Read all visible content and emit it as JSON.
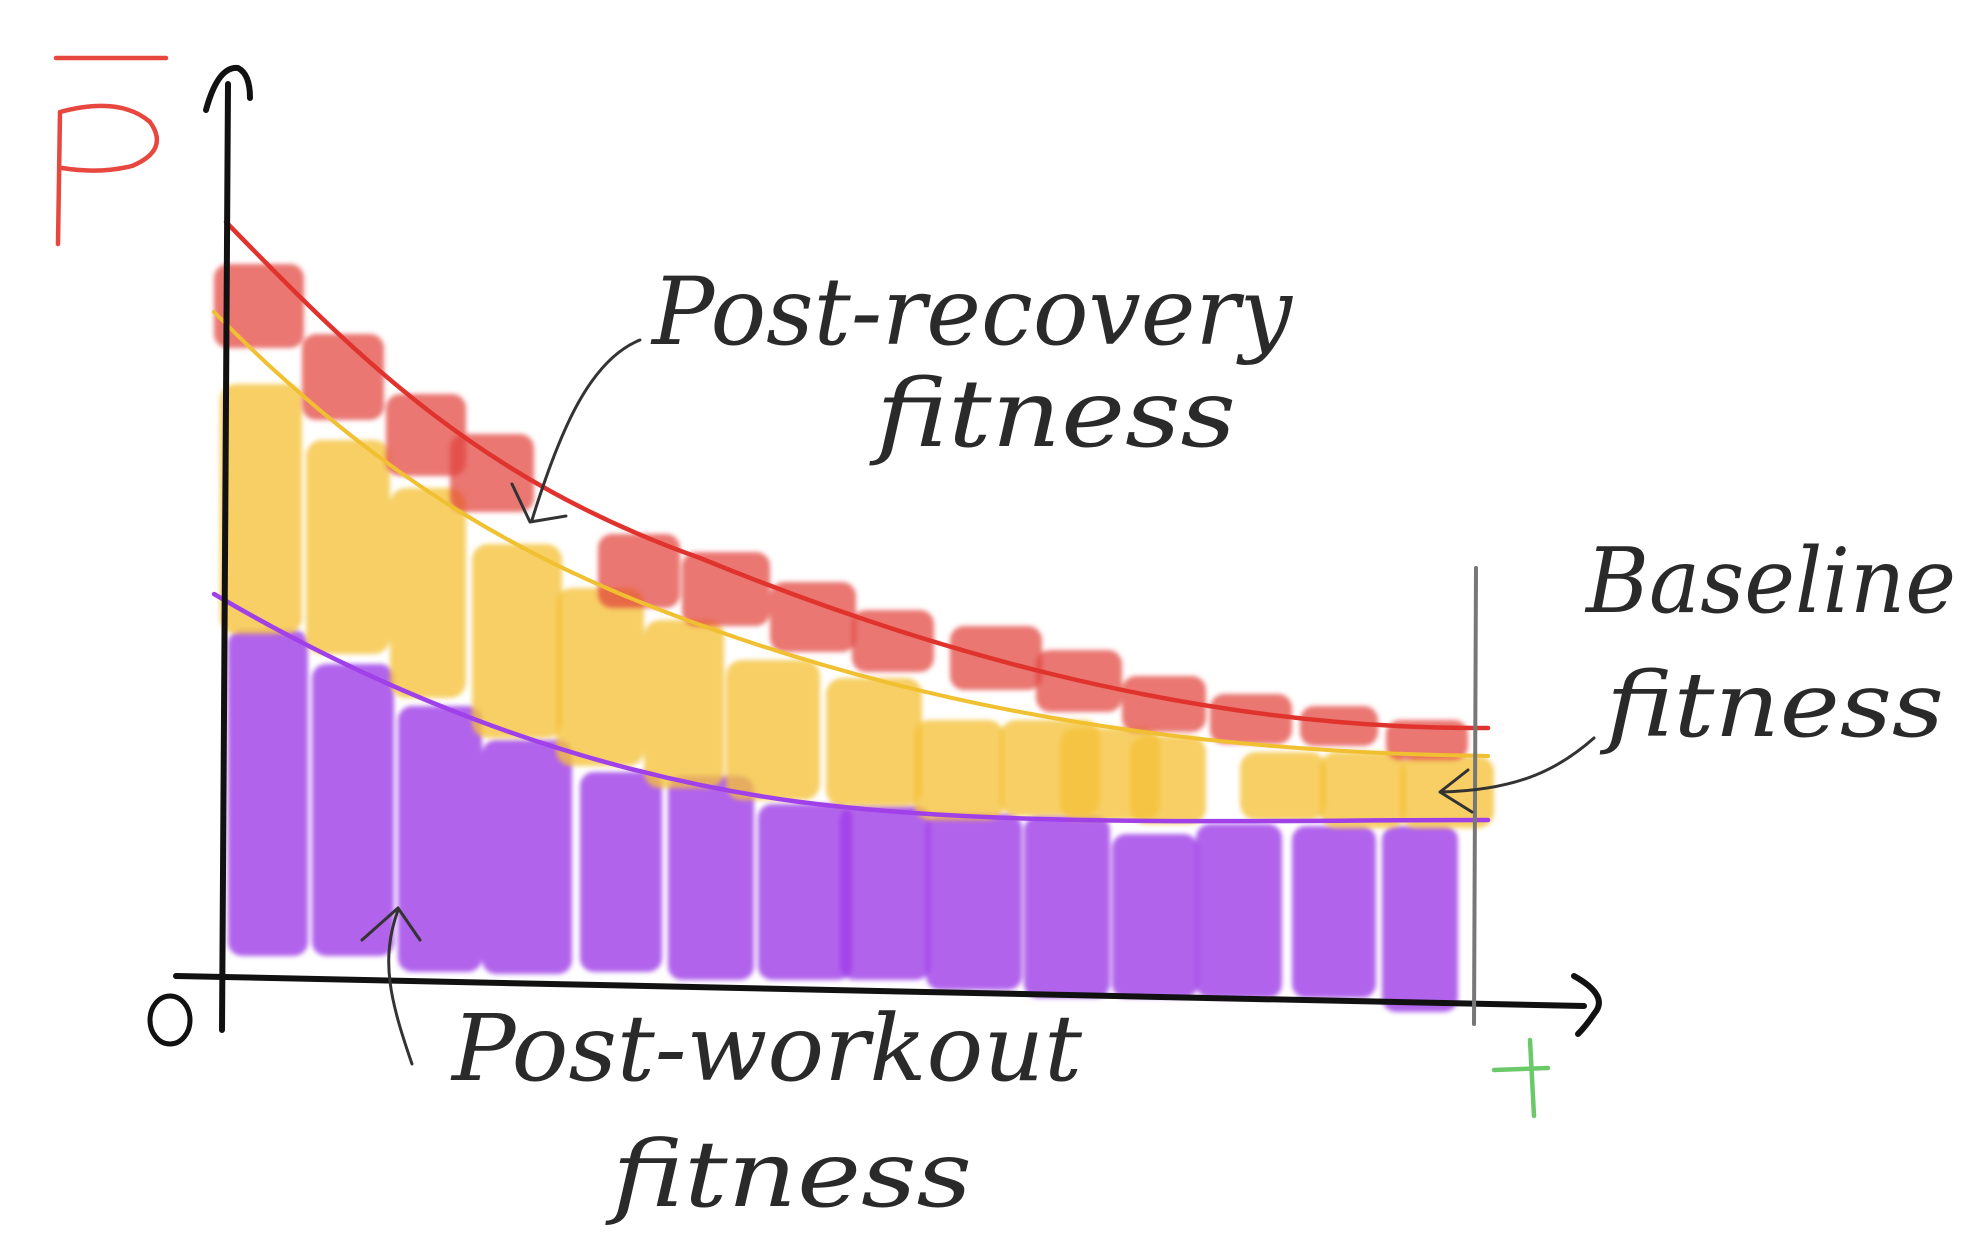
{
  "labels": {
    "y_axis": "P̄",
    "origin": "0",
    "t_marker": "t",
    "post_recovery": [
      "Post-recovery",
      "fitness"
    ],
    "baseline": [
      "Baseline",
      "fitness"
    ],
    "post_workout": [
      "Post-workout",
      "fitness"
    ]
  },
  "colors": {
    "axis": "#111111",
    "p_bar_label": "#e8473f",
    "t_marker": "#6cc96a",
    "post_recovery": "#e0332e",
    "baseline": "#f0c030",
    "post_workout": "#a040e8",
    "annotation": "#333333"
  },
  "icons": {
    "arrow_to_post_recovery": "curved-arrow-icon",
    "arrow_to_baseline": "arrow-left-icon",
    "arrow_to_post_workout": "curved-arrow-icon"
  }
}
